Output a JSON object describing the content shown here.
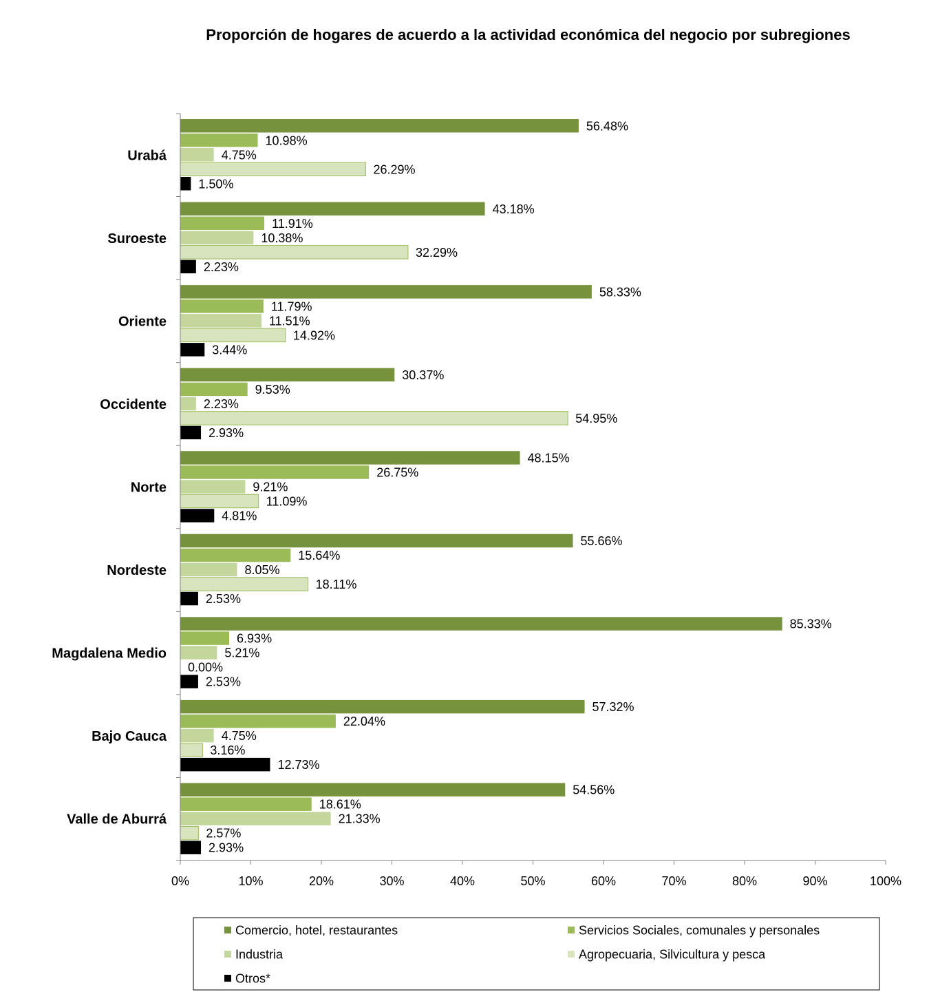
{
  "chart_data": {
    "type": "bar",
    "orientation": "horizontal",
    "title": "Proporción de hogares de acuerdo a la actividad económica del negocio por subregiones",
    "categories": [
      "Urabá",
      "Suroeste",
      "Oriente",
      "Occidente",
      "Norte",
      "Nordeste",
      "Magdalena Medio",
      "Bajo Cauca",
      "Valle de Aburrá"
    ],
    "series": [
      {
        "name": "Comercio, hotel, restaurantes",
        "color": "#76923c",
        "values": [
          56.48,
          43.18,
          58.33,
          30.37,
          48.15,
          55.66,
          85.33,
          57.32,
          54.56
        ],
        "labels": [
          "56.48%",
          "43.18%",
          "58.33%",
          "30.37%",
          "48.15%",
          "55.66%",
          "85.33%",
          "57.32%",
          "54.56%"
        ]
      },
      {
        "name": "Servicios Sociales, comunales y personales",
        "color": "#9bbb59",
        "values": [
          10.98,
          11.91,
          11.79,
          9.53,
          26.75,
          15.64,
          6.93,
          22.04,
          18.61
        ],
        "labels": [
          "10.98%",
          "11.91%",
          "11.79%",
          "9.53%",
          "26.75%",
          "15.64%",
          "6.93%",
          "22.04%",
          "18.61%"
        ]
      },
      {
        "name": "Industria",
        "color": "#c3d69b",
        "values": [
          4.75,
          10.38,
          11.51,
          2.23,
          9.21,
          8.05,
          5.21,
          4.75,
          21.33
        ],
        "labels": [
          "4.75%",
          "10.38%",
          "11.51%",
          "2.23%",
          "9.21%",
          "8.05%",
          "5.21%",
          "4.75%",
          "21.33%"
        ]
      },
      {
        "name": "Agropecuaria, Silvicultura  y pesca",
        "color": "#d7e4bd",
        "values": [
          26.29,
          32.29,
          14.92,
          54.95,
          11.09,
          18.11,
          0.0,
          3.16,
          2.57
        ],
        "labels": [
          "26.29%",
          "32.29%",
          "14.92%",
          "54.95%",
          "11.09%",
          "18.11%",
          "0.00%",
          "3.16%",
          "2.57%"
        ]
      },
      {
        "name": "Otros*",
        "color": "#000000",
        "values": [
          1.5,
          2.23,
          3.44,
          2.93,
          4.81,
          2.53,
          2.53,
          12.73,
          2.93
        ],
        "labels": [
          "1.50%",
          "2.23%",
          "3.44%",
          "2.93%",
          "4.81%",
          "2.53%",
          "2.53%",
          "12.73%",
          "2.93%"
        ]
      }
    ],
    "xlim": [
      0,
      100
    ],
    "x_ticks": [
      "0%",
      "10%",
      "20%",
      "30%",
      "40%",
      "50%",
      "60%",
      "70%",
      "80%",
      "90%",
      "100%"
    ],
    "grid": false,
    "legend_position": "bottom"
  }
}
